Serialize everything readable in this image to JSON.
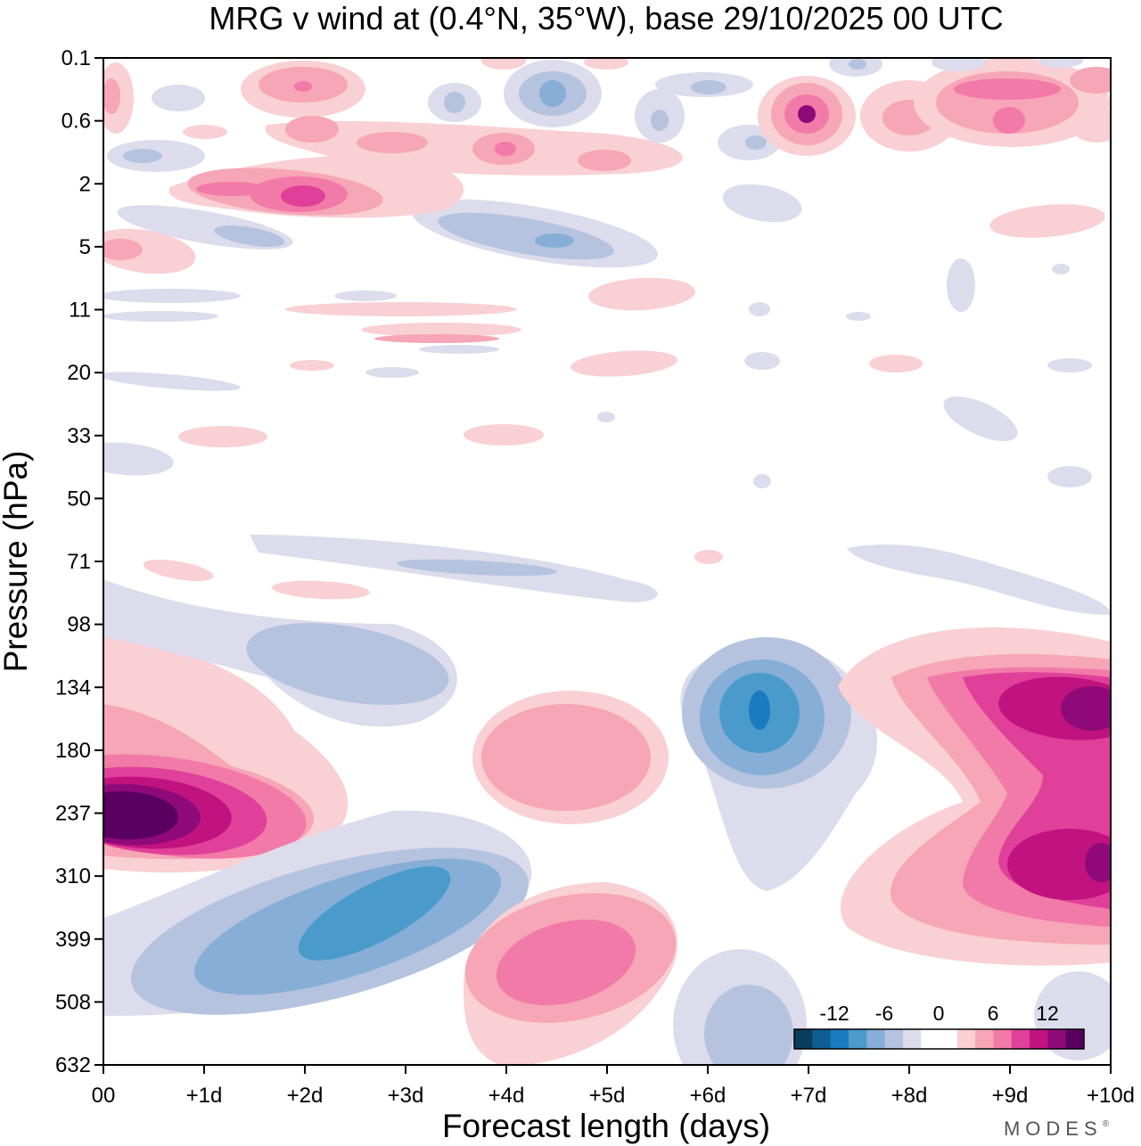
{
  "chart_data": {
    "type": "heatmap",
    "subtype": "filled-contour",
    "title": "MRG v wind at (0.4°N, 35°W),  base 29/10/2025  00 UTC",
    "xlabel": "Forecast length (days)",
    "ylabel": "Pressure (hPa)",
    "x_ticks": [
      "00",
      "+1d",
      "+2d",
      "+3d",
      "+4d",
      "+5d",
      "+6d",
      "+7d",
      "+8d",
      "+9d",
      "+10d"
    ],
    "xlim": [
      0,
      10
    ],
    "y_ticks": [
      "0.1",
      "0.6",
      "2",
      "5",
      "11",
      "20",
      "33",
      "50",
      "71",
      "98",
      "134",
      "180",
      "237",
      "310",
      "399",
      "508",
      "632"
    ],
    "ylim": [
      0.1,
      632
    ],
    "colorbar": {
      "labels": [
        "-12",
        "-6",
        "0",
        "6",
        "12"
      ],
      "levels": [
        -18,
        -15,
        -12,
        -9,
        -6,
        -3,
        0,
        3,
        6,
        9,
        12,
        15,
        18
      ],
      "colors": [
        "#0b3d5c",
        "#0e5f91",
        "#1a7bbf",
        "#4a9bcb",
        "#86aed6",
        "#b5c3df",
        "#dcdcec",
        "#ffffff",
        "#ffffff",
        "#f9d0d3",
        "#f6a6b6",
        "#f27aa8",
        "#e0409a",
        "#c0137f",
        "#8f0a78",
        "#5a0060"
      ]
    },
    "features": [
      {
        "x": 0.5,
        "p": 237,
        "value": 18,
        "label": "strong positive max"
      },
      {
        "x": 2.7,
        "p": 370,
        "value": -12,
        "label": "negative min"
      },
      {
        "x": 4.5,
        "p": 430,
        "value": 9,
        "label": "positive max"
      },
      {
        "x": 6.5,
        "p": 150,
        "value": -15,
        "label": "negative min"
      },
      {
        "x": 9.8,
        "p": 160,
        "value": 15,
        "label": "positive max"
      },
      {
        "x": 9.8,
        "p": 290,
        "value": 12,
        "label": "positive max"
      },
      {
        "x": 2.0,
        "p": 2.5,
        "value": 12,
        "label": "upper positive"
      },
      {
        "x": 7.0,
        "p": 0.6,
        "value": 15,
        "label": "upper positive"
      }
    ]
  },
  "brand": "MODES",
  "brand_mark": "®"
}
